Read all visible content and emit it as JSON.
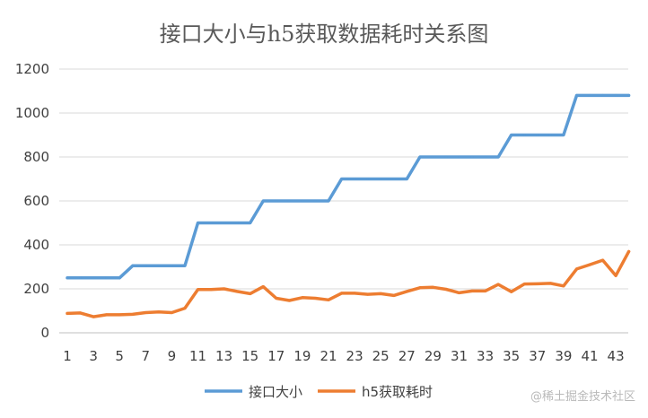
{
  "chart_data": {
    "type": "line",
    "title": "接口大小与h5获取数据耗时关系图",
    "xlabel": "",
    "ylabel": "",
    "ylim": [
      0,
      1200
    ],
    "yticks": [
      0,
      200,
      400,
      600,
      800,
      1000,
      1200
    ],
    "x": [
      1,
      2,
      3,
      4,
      5,
      6,
      7,
      8,
      9,
      10,
      11,
      12,
      13,
      14,
      15,
      16,
      17,
      18,
      19,
      20,
      21,
      22,
      23,
      24,
      25,
      26,
      27,
      28,
      29,
      30,
      31,
      32,
      33,
      34,
      35,
      36,
      37,
      38,
      39,
      40,
      41,
      42,
      43,
      44
    ],
    "xticks": [
      "1",
      "3",
      "5",
      "7",
      "9",
      "11",
      "13",
      "15",
      "17",
      "19",
      "21",
      "23",
      "25",
      "27",
      "29",
      "31",
      "33",
      "35",
      "37",
      "39",
      "41",
      "43"
    ],
    "grid": true,
    "legend_position": "bottom",
    "series": [
      {
        "name": "接口大小",
        "color": "#5b9bd5",
        "values": [
          250,
          250,
          250,
          250,
          250,
          305,
          305,
          305,
          305,
          305,
          500,
          500,
          500,
          500,
          500,
          600,
          600,
          600,
          600,
          600,
          600,
          700,
          700,
          700,
          700,
          700,
          700,
          800,
          800,
          800,
          800,
          800,
          800,
          800,
          900,
          900,
          900,
          900,
          900,
          1080,
          1080,
          1080,
          1080,
          1080
        ]
      },
      {
        "name": "h5获取耗时",
        "color": "#ed7d31",
        "values": [
          88,
          90,
          73,
          82,
          82,
          84,
          92,
          95,
          92,
          112,
          197,
          197,
          200,
          188,
          178,
          210,
          157,
          147,
          160,
          157,
          150,
          180,
          180,
          175,
          178,
          170,
          188,
          205,
          207,
          198,
          182,
          190,
          190,
          220,
          187,
          222,
          223,
          225,
          213,
          290,
          310,
          330,
          260,
          370
        ]
      }
    ]
  },
  "watermark": "@稀土掘金技术社区"
}
